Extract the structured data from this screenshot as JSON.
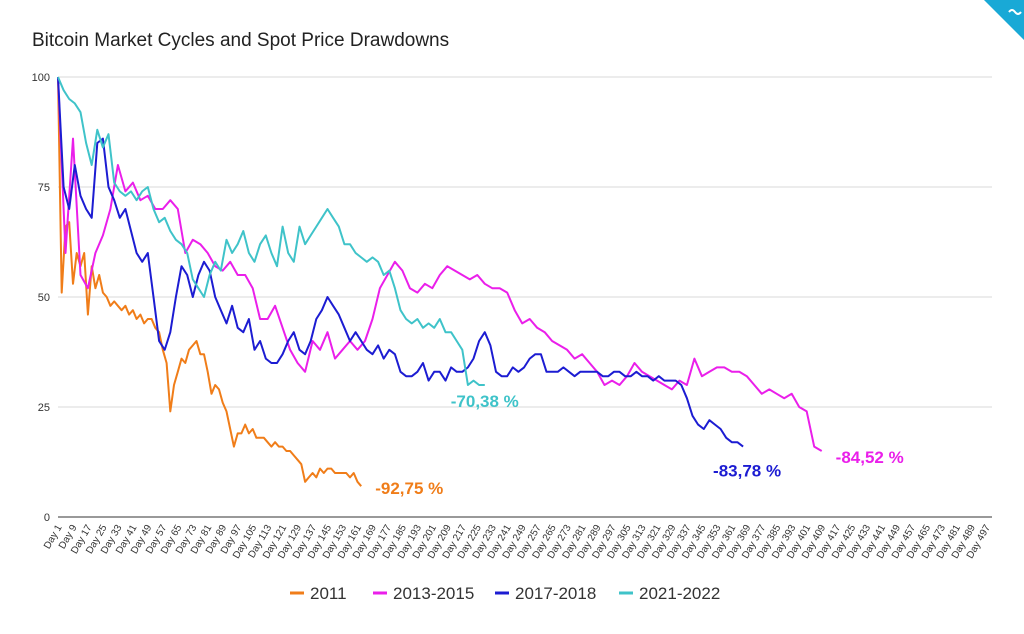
{
  "chart_data": {
    "type": "line",
    "title": "Bitcoin Market Cycles and Spot Price Drawdowns",
    "xlabel": "",
    "ylabel": "",
    "ylim": [
      0,
      100
    ],
    "yticks": [
      0,
      25,
      50,
      75,
      100
    ],
    "grid": true,
    "legend_position": "bottom",
    "x_tick_labels": [
      "Day 1",
      "Day 9",
      "Day 17",
      "Day 25",
      "Day 33",
      "Day 41",
      "Day 49",
      "Day 57",
      "Day 65",
      "Day 73",
      "Day 81",
      "Day 89",
      "Day 97",
      "Day 105",
      "Day 113",
      "Day 121",
      "Day 129",
      "Day 137",
      "Day 145",
      "Day 153",
      "Day 161",
      "Day 169",
      "Day 177",
      "Day 185",
      "Day 193",
      "Day 201",
      "Day 209",
      "Day 217",
      "Day 225",
      "Day 233",
      "Day 241",
      "Day 249",
      "Day 257",
      "Day 265",
      "Day 273",
      "Day 281",
      "Day 289",
      "Day 297",
      "Day 305",
      "Day 313",
      "Day 321",
      "Day 329",
      "Day 337",
      "Day 345",
      "Day 353",
      "Day 361",
      "Day 369",
      "Day 377",
      "Day 385",
      "Day 393",
      "Day 401",
      "Day 409",
      "Day 417",
      "Day 425",
      "Day 433",
      "Day 441",
      "Day 449",
      "Day 457",
      "Day 465",
      "Day 473",
      "Day 481",
      "Day 489",
      "Day 497"
    ],
    "x_range": [
      1,
      500
    ],
    "series": [
      {
        "name": "2011",
        "color": "#f07d19",
        "x": [
          1,
          3,
          5,
          7,
          9,
          11,
          13,
          15,
          17,
          19,
          21,
          23,
          25,
          27,
          29,
          31,
          33,
          35,
          37,
          39,
          41,
          43,
          45,
          47,
          49,
          51,
          53,
          55,
          57,
          59,
          61,
          63,
          65,
          67,
          69,
          71,
          73,
          75,
          77,
          79,
          81,
          83,
          85,
          87,
          89,
          91,
          93,
          95,
          97,
          99,
          101,
          103,
          105,
          107,
          109,
          111,
          113,
          115,
          117,
          119,
          121,
          123,
          125,
          127,
          129,
          131,
          133,
          135,
          137,
          139,
          141,
          143,
          145,
          147,
          149,
          151,
          153,
          155,
          157,
          159,
          161,
          163
        ],
        "y": [
          100,
          51,
          66,
          67,
          53,
          60,
          57,
          60,
          46,
          57,
          52,
          55,
          51,
          50,
          48,
          49,
          48,
          47,
          48,
          46,
          47,
          45,
          46,
          44,
          45,
          45,
          43,
          42,
          38,
          35,
          24,
          30,
          33,
          36,
          35,
          38,
          39,
          40,
          37,
          37,
          33,
          28,
          30,
          29,
          26,
          24,
          20,
          16,
          19,
          19,
          21,
          19,
          20,
          18,
          18,
          18,
          17,
          16,
          17,
          16,
          16,
          15,
          15,
          14,
          13,
          12,
          8,
          9,
          10,
          9,
          11,
          10,
          11,
          11,
          10,
          10,
          10,
          10,
          9,
          10,
          8,
          7
        ]
      },
      {
        "name": "2013-2015",
        "color": "#ea1fea",
        "x": [
          1,
          5,
          9,
          13,
          17,
          21,
          25,
          29,
          33,
          37,
          41,
          45,
          49,
          53,
          57,
          61,
          65,
          69,
          73,
          77,
          81,
          85,
          89,
          93,
          97,
          101,
          105,
          109,
          113,
          117,
          121,
          125,
          129,
          133,
          137,
          141,
          145,
          149,
          153,
          157,
          161,
          165,
          169,
          173,
          177,
          181,
          185,
          189,
          193,
          197,
          201,
          205,
          209,
          213,
          217,
          221,
          225,
          229,
          233,
          237,
          241,
          245,
          249,
          253,
          257,
          261,
          265,
          269,
          273,
          277,
          281,
          285,
          289,
          293,
          297,
          301,
          305,
          309,
          313,
          317,
          321,
          325,
          329,
          333,
          337,
          341,
          345,
          349,
          353,
          357,
          361,
          365,
          369,
          373,
          377,
          381,
          385,
          389,
          393,
          397,
          401,
          405,
          409
        ],
        "y": [
          100,
          60,
          86,
          55,
          52,
          60,
          64,
          70,
          80,
          74,
          76,
          72,
          73,
          70,
          70,
          72,
          70,
          60,
          63,
          62,
          60,
          57,
          56,
          58,
          55,
          55,
          52,
          45,
          45,
          48,
          43,
          38,
          35,
          33,
          40,
          38,
          42,
          36,
          38,
          40,
          38,
          40,
          45,
          52,
          55,
          58,
          56,
          52,
          51,
          53,
          52,
          55,
          57,
          56,
          55,
          54,
          55,
          53,
          52,
          52,
          51,
          47,
          44,
          45,
          43,
          42,
          40,
          39,
          38,
          36,
          37,
          35,
          33,
          30,
          31,
          30,
          32,
          35,
          33,
          32,
          31,
          30,
          29,
          31,
          30,
          36,
          32,
          33,
          34,
          34,
          33,
          33,
          32,
          30,
          28,
          29,
          28,
          27,
          28,
          25,
          24,
          16,
          15
        ]
      },
      {
        "name": "2017-2018",
        "color": "#1c1cd2",
        "x": [
          1,
          4,
          7,
          10,
          13,
          16,
          19,
          22,
          25,
          28,
          31,
          34,
          37,
          40,
          43,
          46,
          49,
          52,
          55,
          58,
          61,
          64,
          67,
          70,
          73,
          76,
          79,
          82,
          85,
          88,
          91,
          94,
          97,
          100,
          103,
          106,
          109,
          112,
          115,
          118,
          121,
          124,
          127,
          130,
          133,
          136,
          139,
          142,
          145,
          148,
          151,
          154,
          157,
          160,
          163,
          166,
          169,
          172,
          175,
          178,
          181,
          184,
          187,
          190,
          193,
          196,
          199,
          202,
          205,
          208,
          211,
          214,
          217,
          220,
          223,
          226,
          229,
          232,
          235,
          238,
          241,
          244,
          247,
          250,
          253,
          256,
          259,
          262,
          265,
          268,
          271,
          274,
          277,
          280,
          283,
          286,
          289,
          292,
          295,
          298,
          301,
          304,
          307,
          310,
          313,
          316,
          319,
          322,
          325,
          328,
          331,
          334,
          337,
          340,
          343,
          346,
          349,
          352,
          355,
          358,
          361,
          364,
          367
        ],
        "y": [
          100,
          75,
          70,
          80,
          73,
          70,
          68,
          85,
          86,
          75,
          72,
          68,
          70,
          65,
          60,
          58,
          60,
          50,
          40,
          38,
          42,
          50,
          57,
          55,
          50,
          55,
          58,
          56,
          50,
          47,
          44,
          48,
          43,
          42,
          45,
          38,
          40,
          36,
          35,
          35,
          37,
          40,
          42,
          38,
          37,
          40,
          45,
          47,
          50,
          48,
          46,
          43,
          40,
          42,
          40,
          38,
          37,
          39,
          36,
          38,
          37,
          33,
          32,
          32,
          33,
          35,
          31,
          33,
          33,
          31,
          34,
          33,
          33,
          34,
          36,
          40,
          42,
          39,
          33,
          32,
          32,
          34,
          33,
          34,
          36,
          37,
          37,
          33,
          33,
          33,
          34,
          33,
          32,
          33,
          33,
          33,
          33,
          32,
          32,
          33,
          33,
          32,
          32,
          33,
          32,
          32,
          31,
          32,
          31,
          31,
          31,
          30,
          27,
          23,
          21,
          20,
          22,
          21,
          20,
          18,
          17,
          17,
          16
        ]
      },
      {
        "name": "2021-2022",
        "color": "#3fc3c9",
        "x": [
          1,
          4,
          7,
          10,
          13,
          16,
          19,
          22,
          25,
          28,
          31,
          34,
          37,
          40,
          43,
          46,
          49,
          52,
          55,
          58,
          61,
          64,
          67,
          70,
          73,
          76,
          79,
          82,
          85,
          88,
          91,
          94,
          97,
          100,
          103,
          106,
          109,
          112,
          115,
          118,
          121,
          124,
          127,
          130,
          133,
          136,
          139,
          142,
          145,
          148,
          151,
          154,
          157,
          160,
          163,
          166,
          169,
          172,
          175,
          178,
          181,
          184,
          187,
          190,
          193,
          196,
          199,
          202,
          205,
          208,
          211,
          214,
          217,
          220,
          223,
          226,
          229
        ],
        "y": [
          100,
          97,
          95,
          94,
          92,
          85,
          80,
          88,
          84,
          87,
          76,
          74,
          73,
          74,
          72,
          74,
          75,
          70,
          67,
          68,
          65,
          63,
          62,
          60,
          54,
          52,
          50,
          55,
          58,
          56,
          63,
          60,
          62,
          65,
          60,
          58,
          62,
          64,
          60,
          57,
          66,
          60,
          58,
          66,
          62,
          64,
          66,
          68,
          70,
          68,
          66,
          62,
          62,
          60,
          59,
          58,
          59,
          58,
          55,
          56,
          52,
          47,
          45,
          44,
          45,
          43,
          44,
          43,
          45,
          42,
          42,
          40,
          38,
          30,
          31,
          30,
          30
        ]
      }
    ],
    "annotations": [
      {
        "text": "-92,75 %",
        "color": "#f07d19"
      },
      {
        "text": "-84,52 %",
        "color": "#ea1fea"
      },
      {
        "text": "-83,78 %",
        "color": "#1c1cd2"
      },
      {
        "text": "-70,38 %",
        "color": "#3fc3c9"
      }
    ]
  },
  "badge_color": "#19a9d6"
}
